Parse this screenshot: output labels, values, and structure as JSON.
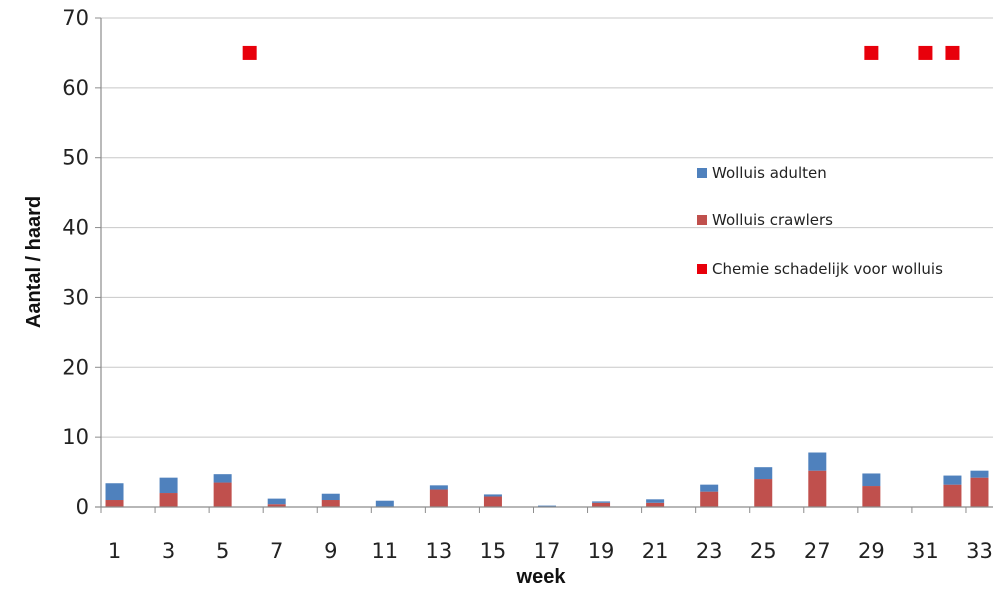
{
  "chart_data": {
    "type": "bar",
    "stacked": true,
    "xlabel": "week",
    "ylabel": "Aantal / haard",
    "ylim": [
      0,
      70
    ],
    "yticks": [
      0,
      10,
      20,
      30,
      40,
      50,
      60,
      70
    ],
    "x": [
      1,
      2,
      3,
      4,
      5,
      6,
      7,
      8,
      9,
      10,
      11,
      12,
      13,
      14,
      15,
      16,
      17,
      18,
      19,
      20,
      21,
      22,
      23,
      24,
      25,
      26,
      27,
      28,
      29,
      30,
      31,
      32,
      33
    ],
    "xtick_labels": [
      "1",
      "3",
      "5",
      "7",
      "9",
      "11",
      "13",
      "15",
      "17",
      "19",
      "21",
      "23",
      "25",
      "27",
      "29",
      "31",
      "33"
    ],
    "xtick_weeks": [
      1,
      3,
      5,
      7,
      9,
      11,
      13,
      15,
      17,
      19,
      21,
      23,
      25,
      27,
      29,
      31,
      33
    ],
    "grid": "horizontal",
    "legend_position": "right",
    "series": [
      {
        "name": "Wolluis adulten",
        "kind": "bar",
        "color": "#4f81bd",
        "values": [
          2.4,
          0,
          2.2,
          0,
          1.2,
          0,
          0.8,
          0,
          0.9,
          0,
          0.9,
          0,
          0.6,
          0,
          0.3,
          0,
          0.2,
          0,
          0.2,
          0,
          0.5,
          0,
          1.0,
          0,
          1.7,
          0,
          2.6,
          0,
          1.8,
          0,
          0,
          1.3,
          1.0
        ]
      },
      {
        "name": "Wolluis crawlers",
        "kind": "bar",
        "color": "#c0504d",
        "values": [
          1.0,
          0,
          2.0,
          0,
          3.5,
          0,
          0.4,
          0,
          1.0,
          0,
          0,
          0,
          2.5,
          0,
          1.5,
          0,
          0,
          0,
          0.6,
          0,
          0.6,
          0,
          2.2,
          0,
          4.0,
          0,
          5.2,
          0,
          3.0,
          0,
          0,
          3.2,
          4.2
        ]
      },
      {
        "name": "Chemie schadelijk voor wolluis",
        "kind": "marker",
        "color": "#e8000b",
        "points": [
          {
            "x": 6,
            "y": 65
          },
          {
            "x": 29,
            "y": 65
          },
          {
            "x": 31,
            "y": 65
          },
          {
            "x": 32,
            "y": 65
          }
        ]
      }
    ]
  }
}
